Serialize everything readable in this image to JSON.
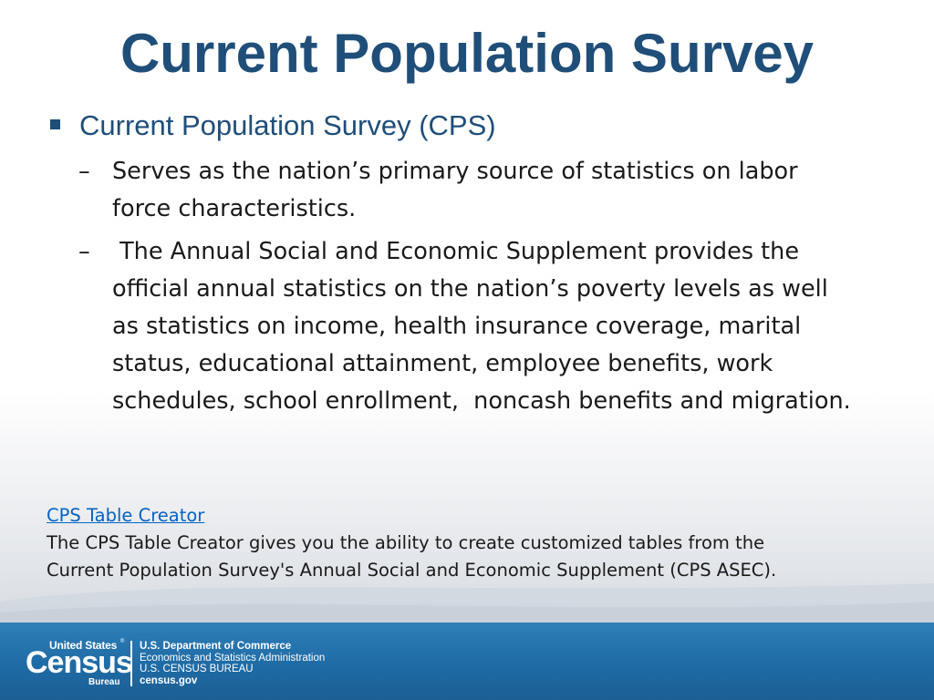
{
  "slide": {
    "title": "Current Population Survey",
    "bullet": "Current Population Survey (CPS)",
    "dash_glyph": "–",
    "sub_items": [
      "Serves as the nation’s primary source of statistics on labor force characteristics.",
      " The Annual Social and Economic Supplement provides the official annual statistics on the nation’s poverty levels as well as statistics on income, health insurance coverage, marital status, educational attainment, employee benefits, work schedules, school enrollment,  noncash benefits and migration."
    ],
    "link_text": "CPS Table Creator",
    "note_lines": [
      "The CPS Table Creator gives you the ability to create customized tables from the",
      "Current Population Survey's Annual Social and Economic Supplement (CPS ASEC)."
    ]
  },
  "footer": {
    "logo": {
      "top_text": "United States",
      "tm": "®",
      "main_text": "Census",
      "bottom_text": "Bureau"
    },
    "dept_lines": [
      "U.S. Department of Commerce",
      "Economics and Statistics Administration",
      "U.S. CENSUS BUREAU",
      "census.gov"
    ]
  },
  "colors": {
    "title": "#1f4e79",
    "link": "#0563c1",
    "footer_band": "#1f6ba5"
  },
  "icons": {
    "bullet": "square-bullet-icon"
  }
}
